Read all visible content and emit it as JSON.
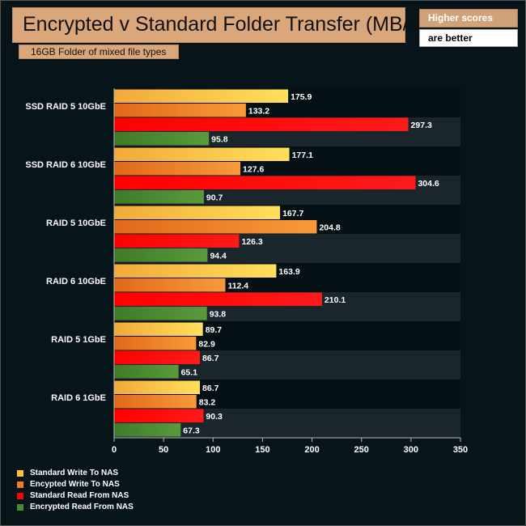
{
  "title": "Encrypted v Standard Folder Transfer (MB/s)",
  "subtitle": "16GB Folder of mixed file types",
  "note": {
    "line1": "Higher scores",
    "line2": "are better"
  },
  "colors": {
    "background": "#07141a",
    "bar_label": "#ffffff",
    "axis_text": "#ffffff"
  },
  "chart_data": {
    "type": "bar",
    "orientation": "horizontal",
    "title": "Encrypted v Standard Folder Transfer (MB/s)",
    "subtitle": "16GB Folder of mixed file types",
    "categories": [
      "SSD RAID 5 10GbE",
      "SSD RAID 6 10GbE",
      "RAID 5 10GbE",
      "RAID 6 10GbE",
      "RAID 5 1GbE",
      "RAID 6 1GbE"
    ],
    "series": [
      {
        "name": "Standard Write To NAS",
        "color": "#f5c43a",
        "values": [
          175.9,
          177.1,
          167.7,
          163.9,
          89.7,
          86.7
        ]
      },
      {
        "name": "Encypted Write To NAS",
        "color": "#f07f22",
        "values": [
          133.2,
          127.6,
          204.8,
          112.4,
          82.9,
          83.2
        ]
      },
      {
        "name": "Standard Read From NAS",
        "color": "#ff0000",
        "values": [
          297.3,
          304.6,
          126.3,
          210.1,
          86.7,
          90.3
        ]
      },
      {
        "name": "Encrypted Read From NAS",
        "color": "#4a8a30",
        "values": [
          95.8,
          90.7,
          94.4,
          93.8,
          65.1,
          67.3
        ]
      }
    ],
    "xlim": [
      0,
      350
    ],
    "xticks": [
      0,
      50,
      100,
      150,
      200,
      250,
      300,
      350
    ],
    "xlabel": "",
    "ylabel": "",
    "legend": "bottom-left"
  }
}
